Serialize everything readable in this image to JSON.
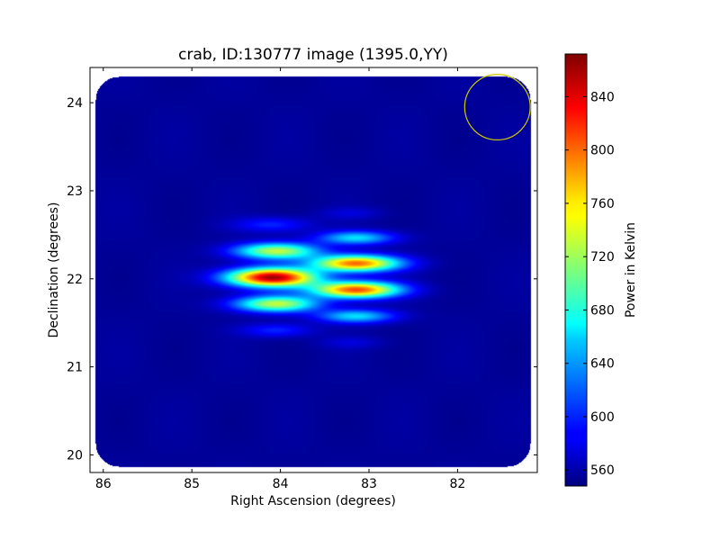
{
  "chart_data": {
    "type": "heatmap",
    "title": "crab, ID:130777 image (1395.0,YY)",
    "xlabel": "Right Ascension (degrees)",
    "ylabel": "Declination (degrees)",
    "x_axis_inverted": true,
    "xlim": [
      86.15,
      81.1
    ],
    "ylim": [
      19.8,
      24.4
    ],
    "xticks": [
      86,
      85,
      84,
      83,
      82
    ],
    "yticks": [
      20,
      21,
      22,
      23,
      24
    ],
    "colormap": "jet",
    "colorbar": {
      "label": "Power in Kelvin",
      "range": [
        548,
        872
      ],
      "ticks": [
        560,
        600,
        640,
        680,
        720,
        760,
        800,
        840
      ]
    },
    "background_value": 556,
    "sources": [
      {
        "ra": 84.1,
        "dec": 22.62,
        "peak": 600,
        "sigma_ra": 0.3,
        "sigma_dec": 0.06
      },
      {
        "ra": 84.05,
        "dec": 22.32,
        "peak": 730,
        "sigma_ra": 0.33,
        "sigma_dec": 0.065
      },
      {
        "ra": 84.1,
        "dec": 22.02,
        "peak": 860,
        "sigma_ra": 0.35,
        "sigma_dec": 0.075
      },
      {
        "ra": 84.05,
        "dec": 21.72,
        "peak": 730,
        "sigma_ra": 0.33,
        "sigma_dec": 0.065
      },
      {
        "ra": 84.05,
        "dec": 21.42,
        "peak": 600,
        "sigma_ra": 0.28,
        "sigma_dec": 0.055
      },
      {
        "ra": 83.15,
        "dec": 22.47,
        "peak": 660,
        "sigma_ra": 0.3,
        "sigma_dec": 0.055
      },
      {
        "ra": 83.15,
        "dec": 22.18,
        "peak": 800,
        "sigma_ra": 0.34,
        "sigma_dec": 0.065
      },
      {
        "ra": 83.15,
        "dec": 21.88,
        "peak": 810,
        "sigma_ra": 0.34,
        "sigma_dec": 0.065
      },
      {
        "ra": 83.15,
        "dec": 21.58,
        "peak": 660,
        "sigma_ra": 0.3,
        "sigma_dec": 0.055
      },
      {
        "ra": 83.2,
        "dec": 22.75,
        "peak": 575,
        "sigma_ra": 0.25,
        "sigma_dec": 0.05
      },
      {
        "ra": 83.2,
        "dec": 21.28,
        "peak": 575,
        "sigma_ra": 0.25,
        "sigma_dec": 0.05
      }
    ],
    "beam_circle": {
      "ra": 81.55,
      "dec": 23.95,
      "radius_deg": 0.37,
      "color": "#cccc00"
    }
  }
}
